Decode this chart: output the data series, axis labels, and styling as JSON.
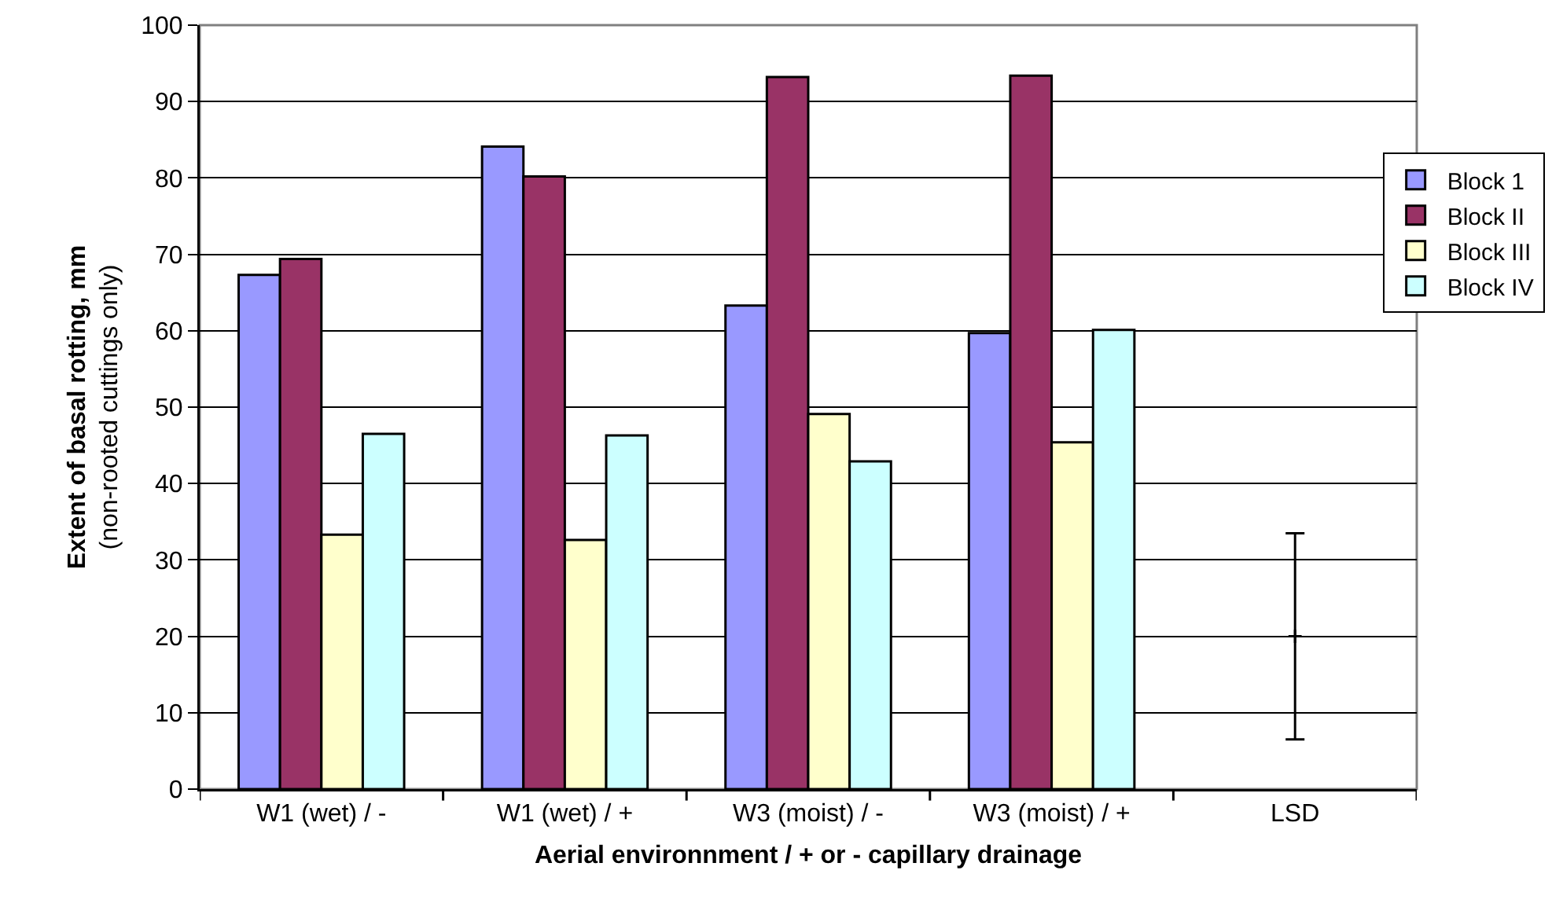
{
  "chart_data": {
    "type": "bar",
    "xlabel": "Aerial environnment / + or - capillary drainage",
    "ylabel": "Extent of basal rotting, mm\n(non-rooted cuttings only)",
    "categories": [
      "W1 (wet) / -",
      "W1 (wet) / +",
      "W3 (moist) / -",
      "W3 (moist) / +",
      "LSD"
    ],
    "series": [
      {
        "name": "Block 1",
        "color": "#9999ff",
        "values": [
          67.3,
          84.1,
          63.3,
          59.7,
          null
        ]
      },
      {
        "name": "Block II",
        "color": "#993366",
        "values": [
          69.4,
          80.2,
          93.2,
          93.4,
          null
        ]
      },
      {
        "name": "Block III",
        "color": "#ffffcc",
        "values": [
          33.3,
          32.6,
          49.1,
          45.4,
          null
        ]
      },
      {
        "name": "Block IV",
        "color": "#ccffff",
        "values": [
          46.5,
          46.3,
          42.9,
          60.1,
          null
        ]
      },
      {
        "type": "scatter",
        "marker": "cross",
        "color": "#000000",
        "x": [
          "LSD"
        ],
        "values": [
          20
        ],
        "errors": [
          13.5
        ]
      }
    ],
    "ylim": [
      0,
      100
    ],
    "yticks": [
      0,
      10,
      20,
      30,
      40,
      50,
      60,
      70,
      80,
      90,
      100
    ],
    "grid": "y",
    "legend": "right"
  }
}
